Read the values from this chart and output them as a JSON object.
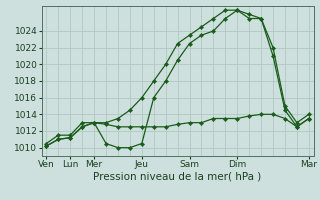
{
  "bg_color": "#cde0de",
  "grid_color": "#b0c8c4",
  "line_color": "#1a5c1a",
  "xlabel": "Pression niveau de la mer( hPa )",
  "ylim": [
    1009,
    1027
  ],
  "yticks": [
    1010,
    1012,
    1014,
    1016,
    1018,
    1020,
    1022,
    1024
  ],
  "xtick_positions": [
    0,
    1,
    2,
    4,
    6,
    8,
    11
  ],
  "xtick_labels": [
    "Ven",
    "Lun",
    "Mer",
    "Jeu",
    "Sam",
    "Dim",
    "Mar"
  ],
  "line1_x": [
    0,
    0.5,
    1.0,
    1.5,
    2.0,
    2.5,
    3.0,
    3.5,
    4.0,
    4.5,
    5.0,
    5.5,
    6.0,
    6.5,
    7.0,
    7.5,
    8.0,
    8.5,
    9.0,
    9.5,
    10.0,
    10.5,
    11.0
  ],
  "line1_y": [
    1010.5,
    1011.5,
    1011.5,
    1013.0,
    1013.0,
    1010.5,
    1010.0,
    1010.0,
    1010.5,
    1016.0,
    1018.0,
    1020.5,
    1022.5,
    1023.5,
    1024.0,
    1025.5,
    1026.5,
    1025.5,
    1025.5,
    1022.0,
    1015.0,
    1013.0,
    1014.0
  ],
  "line2_x": [
    0,
    0.5,
    1.0,
    1.5,
    2.0,
    2.5,
    3.0,
    3.5,
    4.0,
    4.5,
    5.0,
    5.5,
    6.0,
    6.5,
    7.0,
    7.5,
    8.0,
    8.5,
    9.0,
    9.5,
    10.0,
    10.5,
    11.0
  ],
  "line2_y": [
    1010.2,
    1011.0,
    1011.2,
    1012.5,
    1013.0,
    1013.0,
    1013.5,
    1014.5,
    1016.0,
    1018.0,
    1020.0,
    1022.5,
    1023.5,
    1024.5,
    1025.5,
    1026.5,
    1026.5,
    1026.0,
    1025.5,
    1021.0,
    1014.5,
    1012.5,
    1013.5
  ],
  "line3_x": [
    0,
    0.5,
    1.0,
    1.5,
    2.0,
    2.5,
    3.0,
    3.5,
    4.0,
    4.5,
    5.0,
    5.5,
    6.0,
    6.5,
    7.0,
    7.5,
    8.0,
    8.5,
    9.0,
    9.5,
    10.0,
    10.5,
    11.0
  ],
  "line3_y": [
    1010.2,
    1011.0,
    1011.2,
    1012.5,
    1013.0,
    1012.8,
    1012.5,
    1012.5,
    1012.5,
    1012.5,
    1012.5,
    1012.8,
    1013.0,
    1013.0,
    1013.5,
    1013.5,
    1013.5,
    1013.8,
    1014.0,
    1014.0,
    1013.5,
    1012.5,
    1013.5
  ],
  "xlim": [
    -0.2,
    11.2
  ]
}
